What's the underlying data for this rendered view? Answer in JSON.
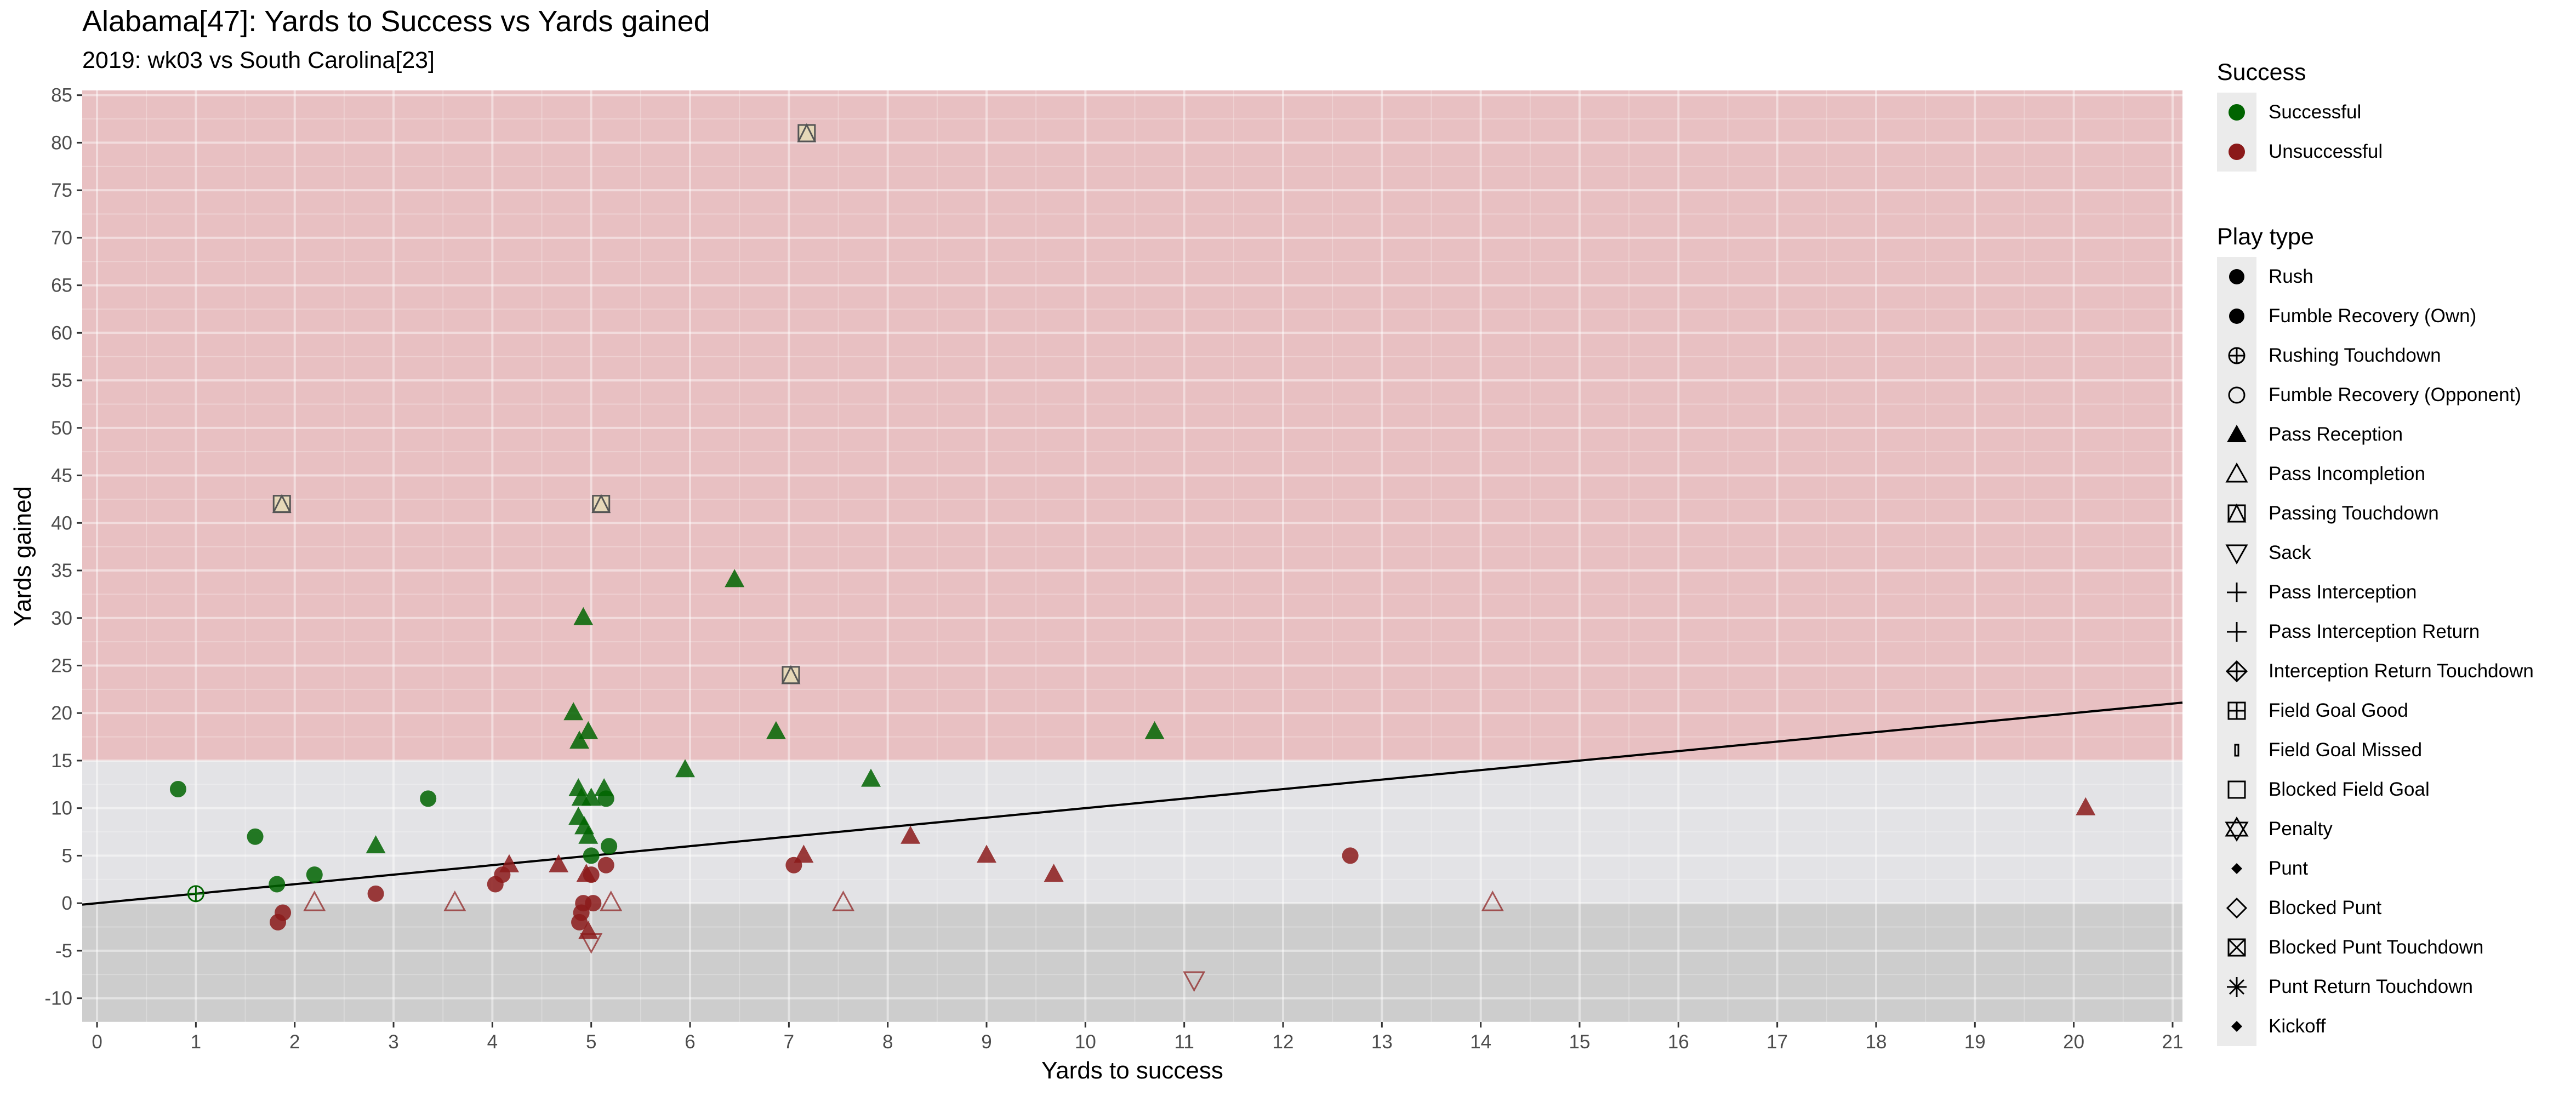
{
  "title": "Alabama[47]: Yards to Success vs Yards gained",
  "subtitle": "2019: wk03 vs South Carolina[23]",
  "colors": {
    "successful": "#006400",
    "unsuccessful": "#8b1a1a",
    "band_high": "#e8c0c2",
    "band_mid": "#e3e3e6",
    "band_low": "#cdcdcd",
    "grid": "#d4d4d4"
  },
  "legend_success": {
    "title": "Success",
    "items": [
      {
        "label": "Successful",
        "key": "successful"
      },
      {
        "label": "Unsuccessful",
        "key": "unsuccessful"
      }
    ]
  },
  "legend_playtype": {
    "title": "Play type",
    "items": [
      {
        "label": "Rush",
        "shape": "circle-filled"
      },
      {
        "label": "Fumble Recovery (Own)",
        "shape": "circle-filled"
      },
      {
        "label": "Rushing Touchdown",
        "shape": "circle-plus"
      },
      {
        "label": "Fumble Recovery (Opponent)",
        "shape": "circle-open"
      },
      {
        "label": "Pass Reception",
        "shape": "triangle-filled"
      },
      {
        "label": "Pass Incompletion",
        "shape": "triangle-open"
      },
      {
        "label": "Passing Touchdown",
        "shape": "square-triangle"
      },
      {
        "label": "Sack",
        "shape": "triangle-down-open"
      },
      {
        "label": "Pass Interception",
        "shape": "plus"
      },
      {
        "label": "Pass Interception Return",
        "shape": "plus"
      },
      {
        "label": "Interception Return Touchdown",
        "shape": "diamond-plus"
      },
      {
        "label": "Field Goal Good",
        "shape": "square-plus"
      },
      {
        "label": "Field Goal Missed",
        "shape": "thin-rect"
      },
      {
        "label": "Blocked Field Goal",
        "shape": "square-open"
      },
      {
        "label": "Penalty",
        "shape": "star-david"
      },
      {
        "label": "Punt",
        "shape": "diamond-filled"
      },
      {
        "label": "Blocked Punt",
        "shape": "diamond-open"
      },
      {
        "label": "Blocked Punt Touchdown",
        "shape": "square-cross"
      },
      {
        "label": "Punt Return Touchdown",
        "shape": "asterisk"
      },
      {
        "label": "Kickoff",
        "shape": "diamond-filled"
      }
    ]
  },
  "chart_data": {
    "type": "scatter",
    "title": "Alabama[47]: Yards to Success vs Yards gained",
    "subtitle": "2019: wk03 vs South Carolina[23]",
    "xlabel": "Yards to success",
    "ylabel": "Yards gained",
    "xlim": [
      -0.15,
      21.1
    ],
    "ylim": [
      -12.5,
      85.5
    ],
    "xticks": [
      0,
      1,
      2,
      3,
      4,
      5,
      6,
      7,
      8,
      9,
      10,
      11,
      12,
      13,
      14,
      15,
      16,
      17,
      18,
      19,
      20,
      21
    ],
    "yticks": [
      -10,
      -5,
      0,
      5,
      10,
      15,
      20,
      25,
      30,
      35,
      40,
      45,
      50,
      55,
      60,
      65,
      70,
      75,
      80,
      85
    ],
    "grid": true,
    "background_bands": [
      {
        "from": 15,
        "to": 85.5,
        "color_key": "band_high"
      },
      {
        "from": 0,
        "to": 15,
        "color_key": "band_mid"
      },
      {
        "from": -12.5,
        "to": 0,
        "color_key": "band_low"
      }
    ],
    "reference_line": {
      "x": [
        -0.15,
        21.1
      ],
      "y": [
        -0.15,
        21.1
      ]
    },
    "legend_placement": "right",
    "points": [
      {
        "x": 0.82,
        "y": 12,
        "play": "Rush",
        "success": "Successful"
      },
      {
        "x": 1.6,
        "y": 7,
        "play": "Rush",
        "success": "Successful"
      },
      {
        "x": 1.82,
        "y": 2,
        "play": "Rush",
        "success": "Successful"
      },
      {
        "x": 2.2,
        "y": 3,
        "play": "Rush",
        "success": "Successful"
      },
      {
        "x": 3.35,
        "y": 11,
        "play": "Rush",
        "success": "Successful"
      },
      {
        "x": 5.0,
        "y": 5,
        "play": "Rush",
        "success": "Successful"
      },
      {
        "x": 5.18,
        "y": 6,
        "play": "Rush",
        "success": "Successful"
      },
      {
        "x": 5.15,
        "y": 11,
        "play": "Rush",
        "success": "Successful"
      },
      {
        "x": 1.0,
        "y": 1,
        "play": "Rushing Touchdown",
        "success": "Successful"
      },
      {
        "x": 2.82,
        "y": 6,
        "play": "Pass Reception",
        "success": "Successful"
      },
      {
        "x": 4.82,
        "y": 20,
        "play": "Pass Reception",
        "success": "Successful"
      },
      {
        "x": 4.88,
        "y": 17,
        "play": "Pass Reception",
        "success": "Successful"
      },
      {
        "x": 4.92,
        "y": 30,
        "play": "Pass Reception",
        "success": "Successful"
      },
      {
        "x": 4.97,
        "y": 18,
        "play": "Pass Reception",
        "success": "Successful"
      },
      {
        "x": 4.87,
        "y": 12,
        "play": "Pass Reception",
        "success": "Successful"
      },
      {
        "x": 4.87,
        "y": 9,
        "play": "Pass Reception",
        "success": "Successful"
      },
      {
        "x": 4.93,
        "y": 8,
        "play": "Pass Reception",
        "success": "Successful"
      },
      {
        "x": 4.97,
        "y": 7,
        "play": "Pass Reception",
        "success": "Successful"
      },
      {
        "x": 4.9,
        "y": 11,
        "play": "Pass Reception",
        "success": "Successful"
      },
      {
        "x": 5.0,
        "y": 11,
        "play": "Pass Reception",
        "success": "Successful"
      },
      {
        "x": 5.13,
        "y": 12,
        "play": "Pass Reception",
        "success": "Successful"
      },
      {
        "x": 5.95,
        "y": 14,
        "play": "Pass Reception",
        "success": "Successful"
      },
      {
        "x": 6.45,
        "y": 34,
        "play": "Pass Reception",
        "success": "Successful"
      },
      {
        "x": 6.87,
        "y": 18,
        "play": "Pass Reception",
        "success": "Successful"
      },
      {
        "x": 7.83,
        "y": 13,
        "play": "Pass Reception",
        "success": "Successful"
      },
      {
        "x": 10.7,
        "y": 18,
        "play": "Pass Reception",
        "success": "Successful"
      },
      {
        "x": 1.87,
        "y": 42,
        "play": "Passing Touchdown",
        "success": "Successful"
      },
      {
        "x": 5.1,
        "y": 42,
        "play": "Passing Touchdown",
        "success": "Successful"
      },
      {
        "x": 7.02,
        "y": 24,
        "play": "Passing Touchdown",
        "success": "Successful"
      },
      {
        "x": 7.18,
        "y": 81,
        "play": "Passing Touchdown",
        "success": "Successful"
      },
      {
        "x": 1.83,
        "y": -2,
        "play": "Rush",
        "success": "Unsuccessful"
      },
      {
        "x": 1.88,
        "y": -1,
        "play": "Rush",
        "success": "Unsuccessful"
      },
      {
        "x": 2.82,
        "y": 1,
        "play": "Rush",
        "success": "Unsuccessful"
      },
      {
        "x": 4.03,
        "y": 2,
        "play": "Rush",
        "success": "Unsuccessful"
      },
      {
        "x": 4.1,
        "y": 3,
        "play": "Rush",
        "success": "Unsuccessful"
      },
      {
        "x": 4.88,
        "y": -2,
        "play": "Rush",
        "success": "Unsuccessful"
      },
      {
        "x": 4.9,
        "y": -1,
        "play": "Rush",
        "success": "Unsuccessful"
      },
      {
        "x": 4.92,
        "y": 0,
        "play": "Rush",
        "success": "Unsuccessful"
      },
      {
        "x": 5.02,
        "y": 0,
        "play": "Rush",
        "success": "Unsuccessful"
      },
      {
        "x": 5.0,
        "y": 3,
        "play": "Rush",
        "success": "Unsuccessful"
      },
      {
        "x": 5.15,
        "y": 4,
        "play": "Rush",
        "success": "Unsuccessful"
      },
      {
        "x": 7.05,
        "y": 4,
        "play": "Rush",
        "success": "Unsuccessful"
      },
      {
        "x": 12.68,
        "y": 5,
        "play": "Rush",
        "success": "Unsuccessful"
      },
      {
        "x": 4.17,
        "y": 4,
        "play": "Pass Reception",
        "success": "Unsuccessful"
      },
      {
        "x": 4.67,
        "y": 4,
        "play": "Pass Reception",
        "success": "Unsuccessful"
      },
      {
        "x": 4.95,
        "y": 3,
        "play": "Pass Reception",
        "success": "Unsuccessful"
      },
      {
        "x": 4.97,
        "y": -3,
        "play": "Pass Reception",
        "success": "Unsuccessful"
      },
      {
        "x": 7.15,
        "y": 5,
        "play": "Pass Reception",
        "success": "Unsuccessful"
      },
      {
        "x": 8.23,
        "y": 7,
        "play": "Pass Reception",
        "success": "Unsuccessful"
      },
      {
        "x": 9.0,
        "y": 5,
        "play": "Pass Reception",
        "success": "Unsuccessful"
      },
      {
        "x": 9.68,
        "y": 3,
        "play": "Pass Reception",
        "success": "Unsuccessful"
      },
      {
        "x": 20.12,
        "y": 10,
        "play": "Pass Reception",
        "success": "Unsuccessful"
      },
      {
        "x": 2.2,
        "y": 0,
        "play": "Pass Incompletion",
        "success": "Unsuccessful"
      },
      {
        "x": 3.62,
        "y": 0,
        "play": "Pass Incompletion",
        "success": "Unsuccessful"
      },
      {
        "x": 5.2,
        "y": 0,
        "play": "Pass Incompletion",
        "success": "Unsuccessful"
      },
      {
        "x": 7.55,
        "y": 0,
        "play": "Pass Incompletion",
        "success": "Unsuccessful"
      },
      {
        "x": 14.12,
        "y": 0,
        "play": "Pass Incompletion",
        "success": "Unsuccessful"
      },
      {
        "x": 5.0,
        "y": -4,
        "play": "Sack",
        "success": "Unsuccessful"
      },
      {
        "x": 11.1,
        "y": -8,
        "play": "Sack",
        "success": "Unsuccessful"
      }
    ]
  }
}
